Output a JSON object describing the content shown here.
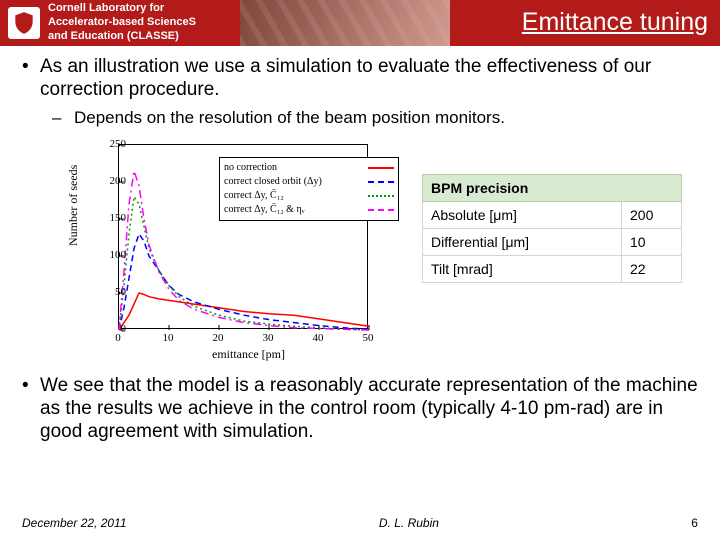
{
  "header": {
    "lab_name": "Cornell Laboratory for\nAccelerator-based ScienceS\nand Education (CLASSE)",
    "title": "Emittance tuning"
  },
  "body": {
    "bullet1": "As an illustration we use a simulation to evaluate the effectiveness of our correction procedure.",
    "sub1": "Depends on the resolution of the beam position monitors.",
    "bullet2": "We see that the model is a reasonably accurate representation of the machine as the results we achieve in the control room (typically 4-10 pm-rad) are in good agreement with simulation."
  },
  "table": {
    "header": "BPM precision",
    "rows": [
      {
        "label": "Absolute [μm]",
        "value": "200"
      },
      {
        "label": "Differential [μm]",
        "value": "10"
      },
      {
        "label": "Tilt [mrad]",
        "value": "22"
      }
    ]
  },
  "chart": {
    "type": "line",
    "xlabel": "emittance [pm]",
    "ylabel": "Number of seeds",
    "xlim": [
      0,
      50
    ],
    "ylim": [
      0,
      250
    ],
    "xticks": [
      0,
      10,
      20,
      30,
      40,
      50
    ],
    "yticks": [
      0,
      50,
      100,
      150,
      200,
      250
    ],
    "font_family": "Times New Roman",
    "tick_fontsize": 11,
    "label_fontsize": 12,
    "background_color": "#ffffff",
    "border_color": "#000000",
    "legend": {
      "position": "top-right",
      "border_color": "#000000",
      "entries": [
        {
          "label": "no correction",
          "color": "#ff0000",
          "dash": "solid"
        },
        {
          "label": "correct closed orbit (Δy)",
          "color": "#0000ff",
          "dash": "dashed"
        },
        {
          "label": "correct Δy,  C̄₁₂",
          "color": "#009900",
          "dash": "dotted"
        },
        {
          "label": "correct Δy,  C̄₁₂ & ηᵥ",
          "color": "#ff00ff",
          "dash": "dashdot"
        }
      ]
    },
    "series": [
      {
        "name": "no correction",
        "color": "#ff0000",
        "dash": "solid",
        "width": 1.5,
        "x": [
          0,
          1,
          2,
          3,
          4,
          5,
          6,
          8,
          10,
          12,
          15,
          20,
          25,
          30,
          35,
          40,
          45,
          50
        ],
        "y": [
          0,
          10,
          20,
          35,
          50,
          48,
          45,
          42,
          40,
          38,
          35,
          30,
          25,
          22,
          20,
          15,
          10,
          5
        ]
      },
      {
        "name": "closed orbit",
        "color": "#0000ff",
        "dash": "dashed",
        "width": 1.5,
        "x": [
          0,
          1,
          2,
          3,
          4,
          5,
          6,
          8,
          10,
          12,
          15,
          20,
          25,
          30,
          35,
          40,
          45,
          50
        ],
        "y": [
          0,
          30,
          70,
          110,
          130,
          120,
          100,
          80,
          60,
          48,
          38,
          28,
          20,
          14,
          10,
          6,
          3,
          1
        ]
      },
      {
        "name": "dy c12",
        "color": "#009900",
        "dash": "dotted",
        "width": 1.5,
        "x": [
          0,
          1,
          2,
          3,
          4,
          5,
          6,
          8,
          10,
          12,
          15,
          20,
          25,
          30,
          35,
          40,
          45,
          50
        ],
        "y": [
          0,
          60,
          130,
          180,
          170,
          140,
          110,
          80,
          60,
          45,
          32,
          20,
          12,
          8,
          5,
          3,
          1,
          0
        ]
      },
      {
        "name": "dy c12 etav",
        "color": "#ff00ff",
        "dash": "dashdot",
        "width": 1.5,
        "x": [
          0,
          1,
          2,
          3,
          4,
          5,
          6,
          8,
          10,
          12,
          15,
          20,
          25,
          30,
          35,
          40,
          45,
          50
        ],
        "y": [
          0,
          80,
          170,
          215,
          195,
          150,
          115,
          78,
          55,
          40,
          28,
          17,
          10,
          6,
          3,
          2,
          1,
          0
        ]
      }
    ]
  },
  "footer": {
    "date": "December 22, 2011",
    "author": "D. L. Rubin",
    "page": "6"
  }
}
